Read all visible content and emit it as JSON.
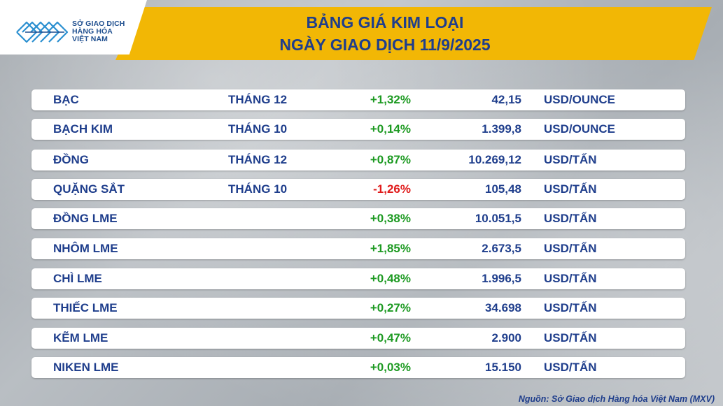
{
  "logo": {
    "line1": "SỞ GIAO DỊCH",
    "line2": "HÀNG HÓA",
    "line3": "VIỆT NAM",
    "icon": "mxv-logo-icon",
    "color": "#1f4f8f"
  },
  "header": {
    "title_line1": "BẢNG GIÁ KIM LOẠI",
    "title_line2": "NGÀY GIAO DỊCH 11/9/2025",
    "band_color": "#f2b705",
    "title_color": "#1f3e8c"
  },
  "colors": {
    "positive": "#1d9a22",
    "negative": "#e01b1b",
    "text": "#1f3e8c"
  },
  "rows": [
    {
      "name": "BẠC",
      "month": "THÁNG 12",
      "change": "+1,32%",
      "direction": "up",
      "price": "42,15",
      "unit": "USD/OUNCE"
    },
    {
      "name": "BẠCH KIM",
      "month": "THÁNG 10",
      "change": "+0,14%",
      "direction": "up",
      "price": "1.399,8",
      "unit": "USD/OUNCE"
    },
    {
      "name": "ĐỒNG",
      "month": "THÁNG 12",
      "change": "+0,87%",
      "direction": "up",
      "price": "10.269,12",
      "unit": "USD/TẤN"
    },
    {
      "name": "QUẶNG SẮT",
      "month": "THÁNG 10",
      "change": "-1,26%",
      "direction": "down",
      "price": "105,48",
      "unit": "USD/TẤN"
    },
    {
      "name": "ĐỒNG LME",
      "month": "",
      "change": "+0,38%",
      "direction": "up",
      "price": "10.051,5",
      "unit": "USD/TẤN"
    },
    {
      "name": "NHÔM LME",
      "month": "",
      "change": "+1,85%",
      "direction": "up",
      "price": "2.673,5",
      "unit": "USD/TẤN"
    },
    {
      "name": "CHÌ LME",
      "month": "",
      "change": "+0,48%",
      "direction": "up",
      "price": "1.996,5",
      "unit": "USD/TẤN"
    },
    {
      "name": "THIẾC LME",
      "month": "",
      "change": "+0,27%",
      "direction": "up",
      "price": "34.698",
      "unit": "USD/TẤN"
    },
    {
      "name": "KẼM LME",
      "month": "",
      "change": "+0,47%",
      "direction": "up",
      "price": "2.900",
      "unit": "USD/TẤN"
    },
    {
      "name": "NIKEN LME",
      "month": "",
      "change": "+0,03%",
      "direction": "up",
      "price": "15.150",
      "unit": "USD/TẤN"
    }
  ],
  "footer": {
    "source": "Nguồn: Sở Giao dịch Hàng hóa Việt Nam (MXV)"
  }
}
